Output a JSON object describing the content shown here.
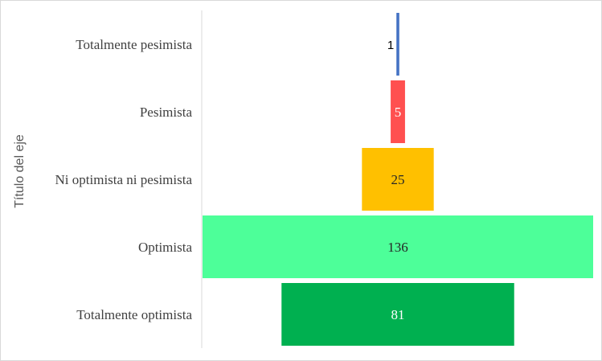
{
  "chart_data": {
    "type": "bar",
    "orientation": "horizontal-funnel",
    "title": "",
    "xlabel": "",
    "ylabel": "Título del eje",
    "categories": [
      "Totalmente pesimista",
      "Pesimista",
      "Ni optimista ni pesimista",
      "Optimista",
      "Totalmente optimista"
    ],
    "values": [
      1,
      5,
      25,
      136,
      81
    ],
    "colors": [
      "#4472c4",
      "#ff5050",
      "#ffc000",
      "#4dff99",
      "#00b050"
    ],
    "label_colors": [
      "#000000",
      "#ffffff",
      "#262626",
      "#262626",
      "#ffffff"
    ],
    "grid": false,
    "legend": "none"
  }
}
